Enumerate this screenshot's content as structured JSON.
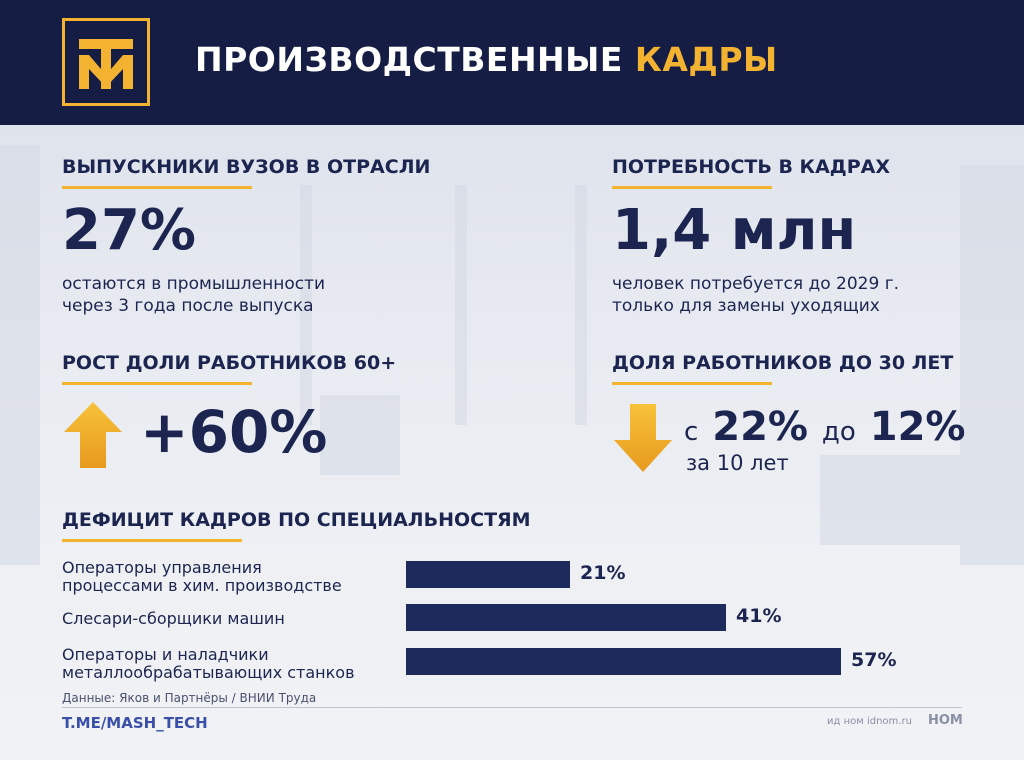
{
  "header": {
    "title_main": "ПРОИЗВОДСТВЕННЫЕ",
    "title_accent": "КАДРЫ",
    "logo_icon": "tm-logo-icon",
    "logo_letters": "ТМ"
  },
  "colors": {
    "navy": "#161d44",
    "accent": "#f3b331",
    "bar": "#1f2a5c"
  },
  "graduates": {
    "heading": "ВЫПУСКНИКИ ВУЗОВ В ОТРАСЛИ",
    "value": "27%",
    "line1": "остаются в промышленности",
    "line2": "через 3 года после выпуска"
  },
  "demand": {
    "heading": "ПОТРЕБНОСТЬ В КАДРАХ",
    "value": "1,4 млн",
    "line1": "человек потребуется до 2029 г.",
    "line2": "только для замены уходящих"
  },
  "growth60": {
    "heading": "РОСТ ДОЛИ РАБОТНИКОВ 60+",
    "value": "+60%",
    "icon": "arrow-up-icon"
  },
  "under30": {
    "heading": "ДОЛЯ РАБОТНИКОВ ДО 30 ЛЕТ",
    "from_word": "с",
    "from_value": "22%",
    "to_word": "до",
    "to_value": "12%",
    "period": "за 10 лет",
    "icon": "arrow-down-icon"
  },
  "deficit": {
    "heading": "ДЕФИЦИТ КАДРОВ ПО СПЕЦИАЛЬНОСТЯМ",
    "items": [
      {
        "line1": "Операторы управления",
        "line2": "процессами в хим. производстве",
        "value": 21,
        "label": "21%"
      },
      {
        "line1": "Слесари-сборщики машин",
        "line2": "",
        "value": 41,
        "label": "41%"
      },
      {
        "line1": "Операторы и наладчики",
        "line2": "металлообрабатывающих станков",
        "value": 57,
        "label": "57%"
      }
    ]
  },
  "footer": {
    "source": "Данные: Яков и Партнёры / ВНИИ Труда",
    "link": "T.ME/MASH_TECH",
    "credit": "ид ном idnom.ru",
    "credit_logo": "НОМ"
  }
}
